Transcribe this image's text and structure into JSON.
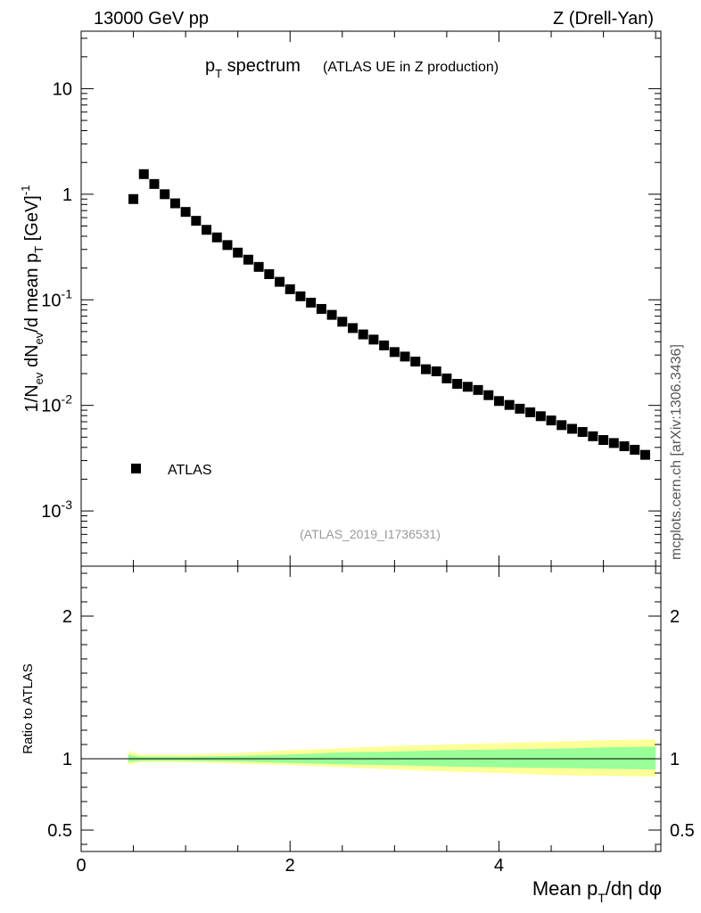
{
  "header": {
    "energy_label": "13000 GeV pp",
    "process_label": "Z (Drell-Yan)"
  },
  "side_label": "mcplots.cern.ch [arXiv:1306.3436]",
  "chart_data": [
    {
      "type": "scatter",
      "panel": "main",
      "title_main": "p",
      "title_sub": "T",
      "title_rest": " spectrum",
      "title_note": "(ATLAS UE in Z production)",
      "analysis_id": "(ATLAS_2019_I1736531)",
      "ylabel": "1/N_ev dN_ev/d mean p_T [GeV]^-1",
      "ylog": true,
      "ylim": [
        0.0003,
        35
      ],
      "xlim": [
        0,
        5.55
      ],
      "ytick_labels": [
        "10",
        "1",
        "10^-1",
        "10^-2",
        "10^-3"
      ],
      "legend": {
        "placement": "bottom-left",
        "label": "ATLAS",
        "marker": "square"
      },
      "series": [
        {
          "name": "ATLAS",
          "x": [
            0.5,
            0.6,
            0.7,
            0.8,
            0.9,
            1.0,
            1.1,
            1.2,
            1.3,
            1.4,
            1.5,
            1.6,
            1.7,
            1.8,
            1.9,
            2.0,
            2.1,
            2.2,
            2.3,
            2.4,
            2.5,
            2.6,
            2.7,
            2.8,
            2.9,
            3.0,
            3.1,
            3.2,
            3.3,
            3.4,
            3.5,
            3.6,
            3.7,
            3.8,
            3.9,
            4.0,
            4.1,
            4.2,
            4.3,
            4.4,
            4.5,
            4.6,
            4.7,
            4.8,
            4.9,
            5.0,
            5.1,
            5.2,
            5.3,
            5.4
          ],
          "y": [
            0.9,
            1.55,
            1.25,
            1.0,
            0.82,
            0.68,
            0.56,
            0.46,
            0.39,
            0.33,
            0.28,
            0.24,
            0.205,
            0.175,
            0.148,
            0.126,
            0.108,
            0.094,
            0.082,
            0.072,
            0.062,
            0.054,
            0.047,
            0.042,
            0.037,
            0.032,
            0.029,
            0.026,
            0.022,
            0.021,
            0.018,
            0.016,
            0.015,
            0.014,
            0.0125,
            0.011,
            0.0101,
            0.0093,
            0.0086,
            0.0079,
            0.0072,
            0.0065,
            0.006,
            0.0056,
            0.0051,
            0.0047,
            0.0044,
            0.0041,
            0.0038,
            0.0034
          ]
        }
      ]
    },
    {
      "type": "area",
      "panel": "ratio",
      "ylabel": "Ratio to ATLAS",
      "xlabel": "Mean p_T/dη dφ",
      "xlim": [
        0,
        5.55
      ],
      "ylim": [
        0.35,
        2.35
      ],
      "xtick_labels": [
        "0",
        "2",
        "4"
      ],
      "ytick_labels": [
        "2",
        "1",
        "0.5"
      ],
      "band_colors": {
        "outer": "#ffff99",
        "inner": "#99ff99"
      },
      "reference_line": 1,
      "x": [
        0.45,
        0.55,
        1.0,
        1.5,
        2.0,
        2.5,
        3.0,
        3.5,
        4.0,
        4.5,
        5.0,
        5.5
      ],
      "outer_band": {
        "upper": [
          1.055,
          1.03,
          1.03,
          1.04,
          1.06,
          1.075,
          1.09,
          1.1,
          1.11,
          1.12,
          1.13,
          1.135
        ],
        "lower": [
          0.955,
          0.975,
          0.975,
          0.965,
          0.955,
          0.94,
          0.925,
          0.91,
          0.9,
          0.885,
          0.88,
          0.875
        ]
      },
      "inner_band": {
        "upper": [
          1.03,
          1.015,
          1.015,
          1.02,
          1.03,
          1.045,
          1.05,
          1.06,
          1.065,
          1.07,
          1.08,
          1.085
        ],
        "lower": [
          0.975,
          0.985,
          0.985,
          0.98,
          0.97,
          0.96,
          0.955,
          0.945,
          0.94,
          0.935,
          0.93,
          0.925
        ]
      }
    }
  ]
}
